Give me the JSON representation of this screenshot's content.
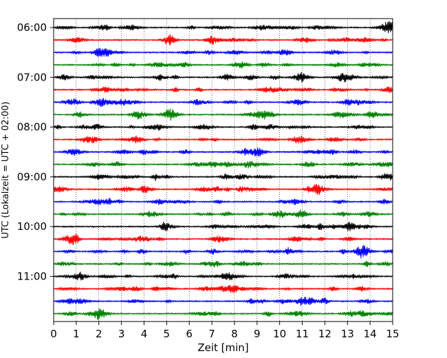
{
  "chart_data": {
    "type": "line",
    "title": "",
    "xlabel": "Zeit  [min]",
    "ylabel": "UTC (Lokalzeit = UTC + 02:00)",
    "xlim": [
      0,
      15
    ],
    "x_ticks": [
      "0",
      "1",
      "2",
      "3",
      "4",
      "5",
      "6",
      "7",
      "8",
      "9",
      "10",
      "11",
      "12",
      "13",
      "14",
      "15"
    ],
    "y_ticks": [
      "06:00",
      "07:00",
      "08:00",
      "09:00",
      "10:00",
      "11:00"
    ],
    "grid": "vertical dotted",
    "trace_start_times": [
      "06:00",
      "06:15",
      "06:30",
      "06:45",
      "07:00",
      "07:15",
      "07:30",
      "07:45",
      "08:00",
      "08:15",
      "08:30",
      "08:45",
      "09:00",
      "09:15",
      "09:30",
      "09:45",
      "10:00",
      "10:15",
      "10:30",
      "10:45",
      "11:00",
      "11:15",
      "11:30",
      "11:45"
    ],
    "trace_colors": [
      "#000000",
      "#ff0000",
      "#0000ff",
      "#008000"
    ]
  }
}
